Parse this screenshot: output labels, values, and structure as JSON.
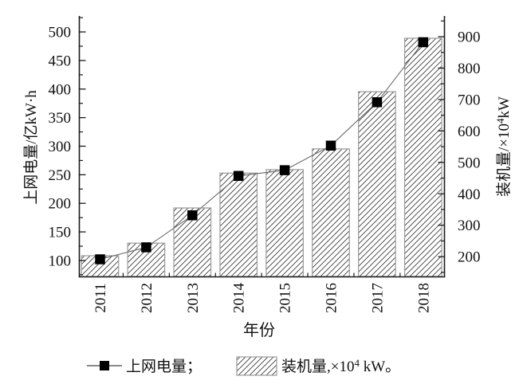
{
  "figure": {
    "background": "#ffffff",
    "axis_color": "#1a1a1a",
    "bar_edge_color": "#9a9a9a",
    "hatch_color": "#3f3f3f",
    "line_color": "#6a6a6a",
    "marker_color": "#000000"
  },
  "chart_data": {
    "type": "combo",
    "title": "",
    "categories": [
      "2011",
      "2012",
      "2013",
      "2014",
      "2015",
      "2016",
      "2017",
      "2018"
    ],
    "series": [
      {
        "name": "上网电量",
        "type": "line",
        "marker": "square",
        "axis": "left",
        "unit": "亿kW·h",
        "values": [
          102,
          123,
          179,
          248,
          258,
          301,
          377,
          482
        ]
      },
      {
        "name": "装机量",
        "type": "bar",
        "axis": "right",
        "unit": "×10⁴ kW",
        "hatch": "diagonal ///",
        "values": [
          203,
          243,
          355,
          466,
          477,
          543,
          725,
          895
        ]
      }
    ],
    "x_axis": {
      "label": "年份"
    },
    "left_axis": {
      "label": "上网电量/亿kW·h",
      "ticks": [
        100,
        150,
        200,
        250,
        300,
        350,
        400,
        450,
        500
      ],
      "minor_ticks": [
        75,
        125,
        175,
        225,
        275,
        325,
        375,
        425,
        475,
        525
      ],
      "range": [
        72,
        528
      ]
    },
    "right_axis": {
      "label": "装机量/×10⁴kW",
      "label_part1": "装机量/×10",
      "label_sup": "4",
      "label_part2": "kW",
      "ticks": [
        200,
        300,
        400,
        500,
        600,
        700,
        800,
        900
      ],
      "minor_ticks": [
        150,
        250,
        350,
        450,
        550,
        650,
        750,
        850,
        950
      ],
      "range": [
        137,
        966
      ]
    },
    "legend": {
      "position": "bottom",
      "item1_label": "上网电量；",
      "item2_part1": "装机量,×10",
      "item2_sup": "4",
      "item2_part2": " kW。"
    },
    "grid": "off",
    "legend_position": "bottom-center"
  }
}
